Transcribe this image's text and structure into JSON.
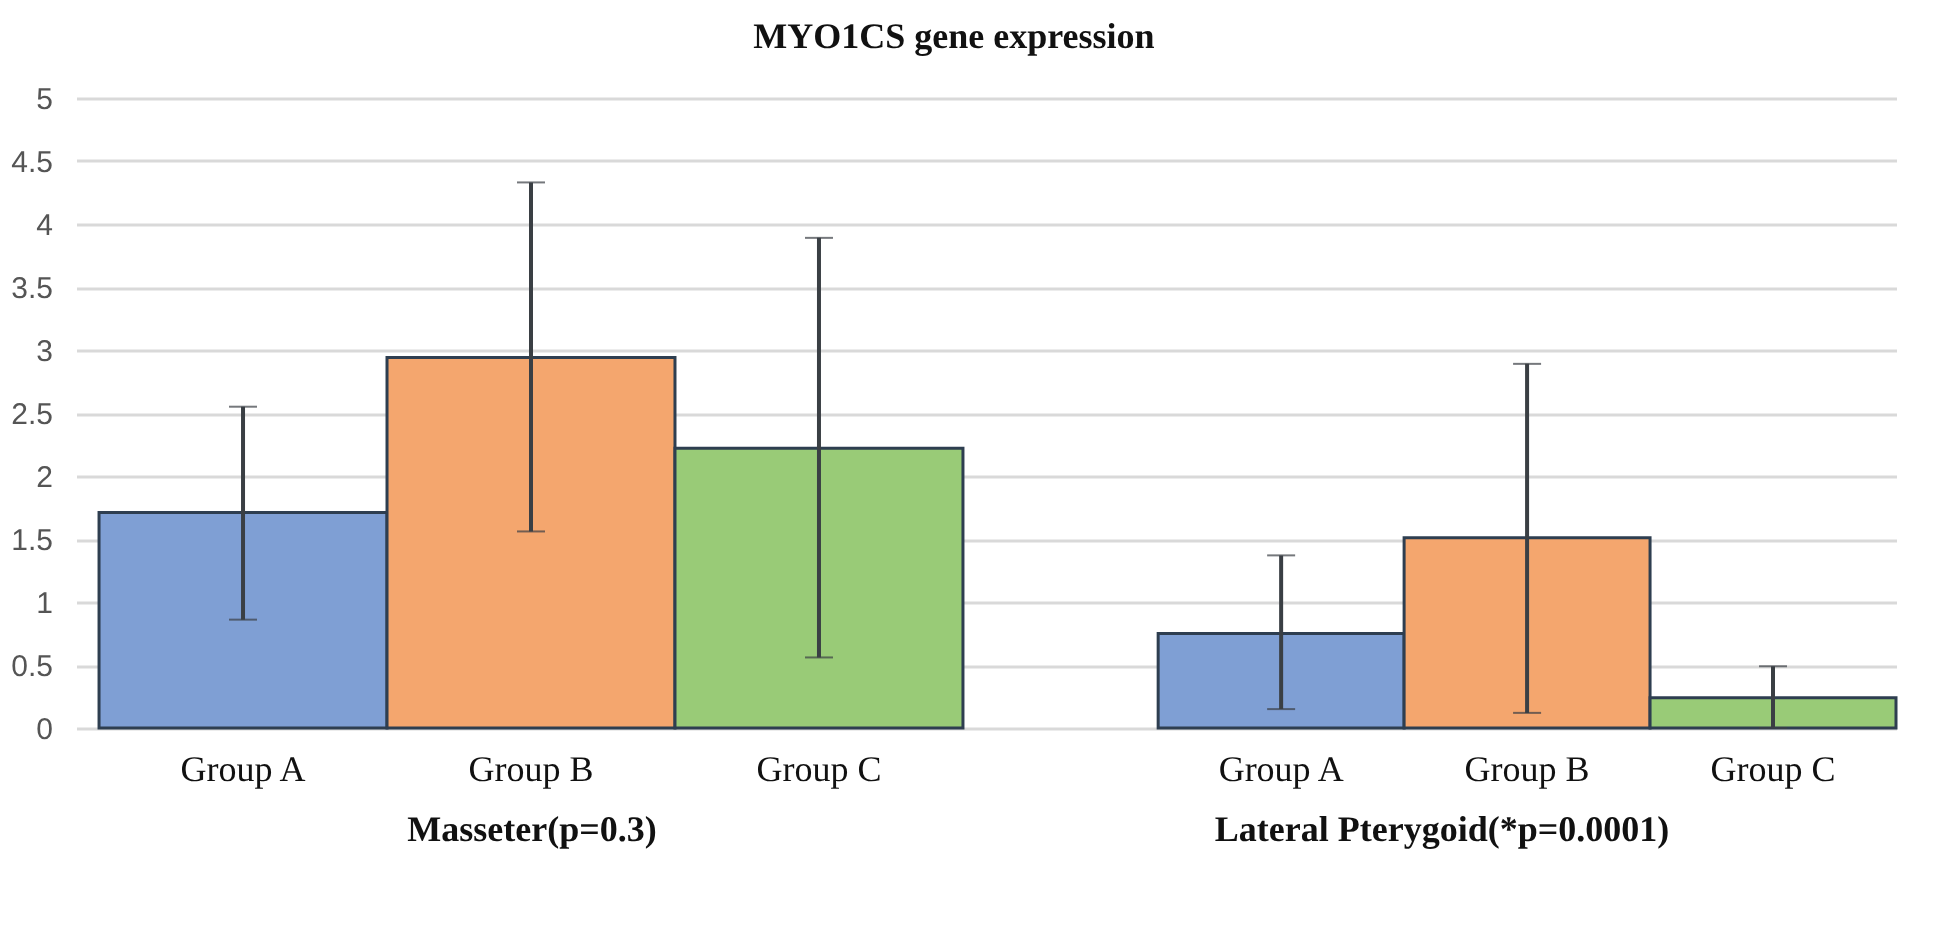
{
  "chart_data": [
    {
      "type": "bar",
      "title": "MYO1CS gene expression",
      "xlabel": "Masseter(p=0.3)",
      "categories": [
        "Group A",
        "Group B",
        "Group C"
      ],
      "values": [
        1.71,
        2.94,
        2.22
      ],
      "colors": [
        "#7f9fd4",
        "#f4a66e",
        "#99cb77"
      ],
      "errors": [
        [
          0.86,
          2.55
        ],
        [
          1.56,
          4.33
        ],
        [
          0.56,
          3.89
        ]
      ],
      "ylim": [
        0,
        5
      ],
      "yticks": [
        0,
        0.5,
        1,
        1.5,
        2,
        2.5,
        3,
        3.5,
        4,
        4.5,
        5
      ],
      "grid": "y"
    },
    {
      "type": "bar",
      "xlabel": "Lateral Pterygoid(*p=0.0001)",
      "categories": [
        "Group A",
        "Group B",
        "Group C"
      ],
      "values": [
        0.75,
        1.51,
        0.24
      ],
      "colors": [
        "#7f9fd4",
        "#f4a66e",
        "#99cb77"
      ],
      "errors": [
        [
          0.15,
          1.37
        ],
        [
          0.12,
          2.89
        ],
        [
          0,
          0.49
        ]
      ],
      "ylim": [
        0,
        5
      ],
      "yticks": [
        0,
        0.5,
        1,
        1.5,
        2,
        2.5,
        3,
        3.5,
        4,
        4.5,
        5
      ],
      "grid": "y",
      "tick_labels": "x"
    }
  ]
}
